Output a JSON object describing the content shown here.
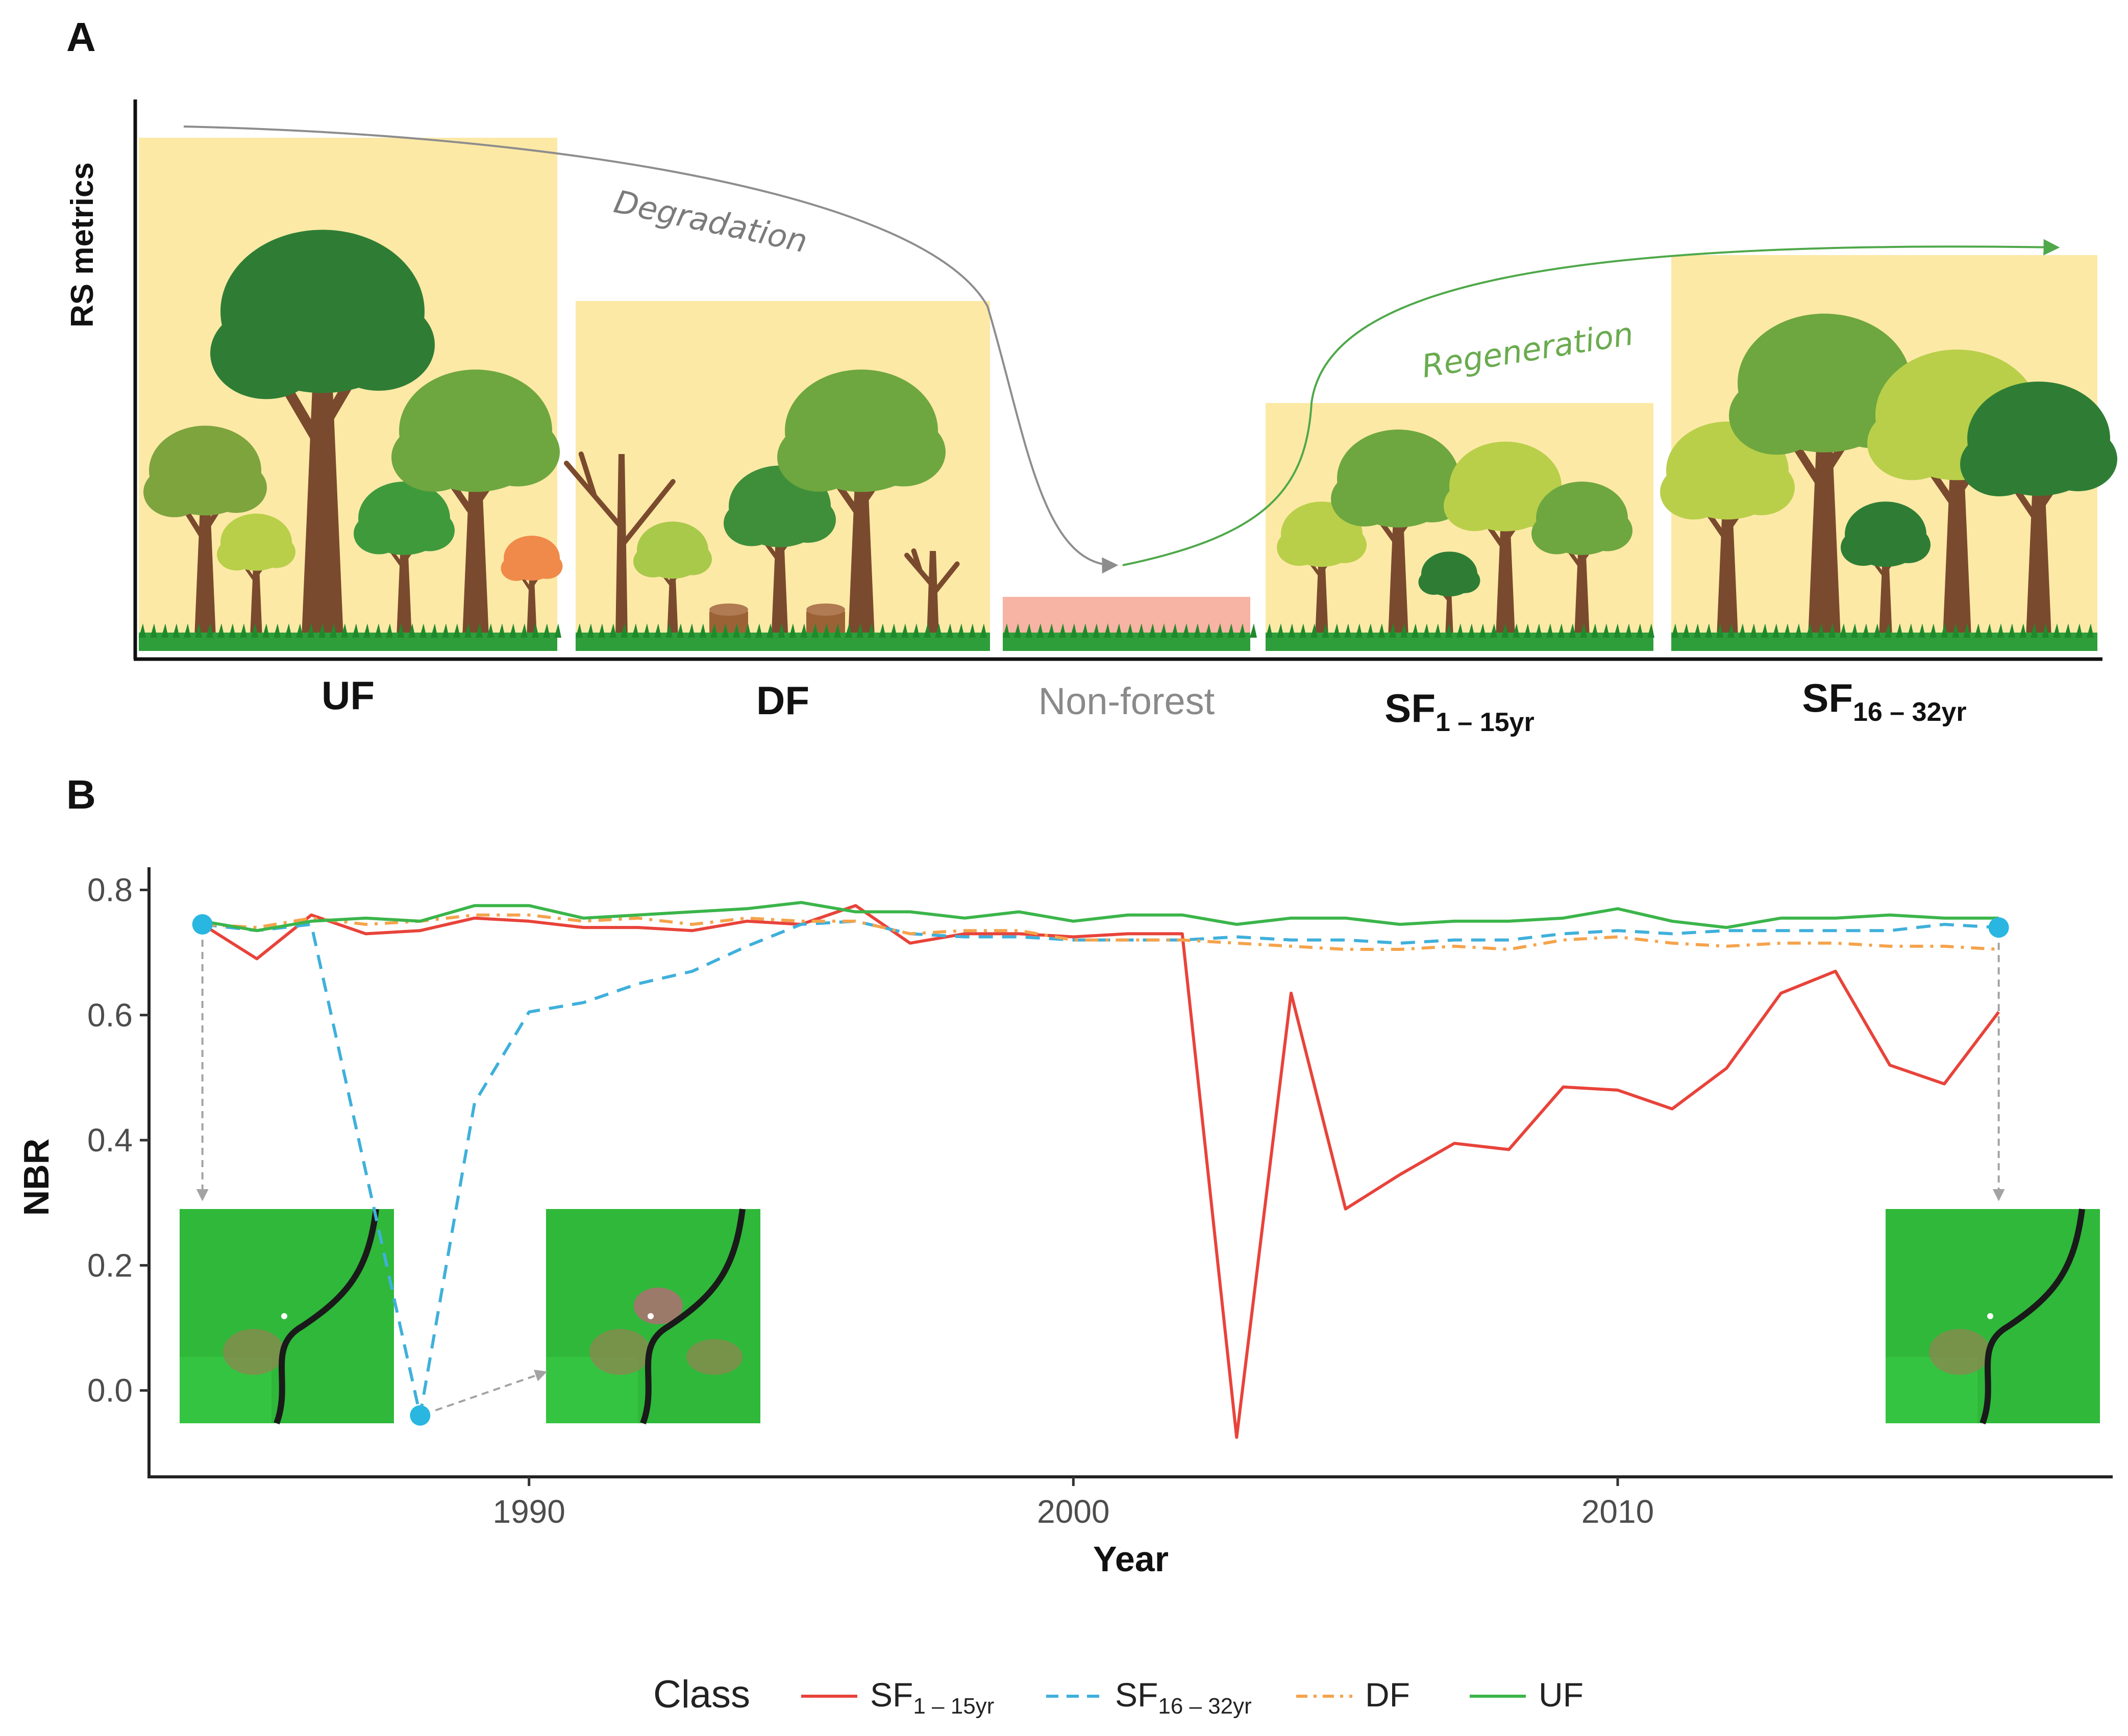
{
  "panel_a": {
    "letter": "A",
    "y_axis_label": "RS metrics",
    "arrow_degradation_label": "Degradation",
    "arrow_regeneration_label": "Regeneration",
    "stages": [
      {
        "label": "UF",
        "sub": "",
        "level": 1.0
      },
      {
        "label": "DF",
        "sub": "",
        "level": 0.68
      },
      {
        "label": "Non-forest",
        "sub": "",
        "level": 0.1
      },
      {
        "label": "SF",
        "sub": "1 – 15yr",
        "level": 0.48
      },
      {
        "label": "SF",
        "sub": "16 – 32yr",
        "level": 0.77
      }
    ],
    "colors": {
      "stage_box": "#fde9a6",
      "nonforest_box": "#f7b3a3",
      "grass": "#2e9e3a"
    }
  },
  "panel_b": {
    "letter": "B"
  },
  "chart_data": {
    "type": "line",
    "xlabel": "Year",
    "ylabel": "NBR",
    "xlim": [
      1983,
      2019
    ],
    "ylim": [
      -0.13,
      0.82
    ],
    "x_ticks": [
      1990,
      2000,
      2010
    ],
    "y_ticks": [
      0.0,
      0.2,
      0.4,
      0.6,
      0.8
    ],
    "x_tick_labels": [
      "1990",
      "2000",
      "2010"
    ],
    "y_tick_labels": [
      "0.0",
      "0.2",
      "0.4",
      "0.6",
      "0.8"
    ],
    "grid": false,
    "legend": {
      "title": "Class",
      "position": "bottom"
    },
    "series": [
      {
        "name": "SF",
        "name_sub": "1 – 15yr",
        "color": "#e8433a",
        "dash": "solid",
        "x": [
          1984,
          1985,
          1986,
          1987,
          1988,
          1989,
          1990,
          1991,
          1992,
          1993,
          1994,
          1995,
          1996,
          1997,
          1998,
          1999,
          2000,
          2001,
          2002,
          2003,
          2004,
          2005,
          2006,
          2007,
          2008,
          2009,
          2010,
          2011,
          2012,
          2013,
          2014,
          2015,
          2016,
          2017
        ],
        "y": [
          0.745,
          0.69,
          0.76,
          0.73,
          0.735,
          0.755,
          0.75,
          0.74,
          0.74,
          0.735,
          0.75,
          0.745,
          0.775,
          0.715,
          0.73,
          0.73,
          0.725,
          0.73,
          0.73,
          -0.075,
          0.635,
          0.29,
          0.345,
          0.395,
          0.385,
          0.485,
          0.48,
          0.45,
          0.515,
          0.635,
          0.67,
          0.52,
          0.49,
          0.605
        ]
      },
      {
        "name": "SF",
        "name_sub": "16 – 32yr",
        "color": "#3fb0db",
        "dash": "dashed",
        "x": [
          1984,
          1985,
          1986,
          1987,
          1988,
          1989,
          1990,
          1991,
          1992,
          1993,
          1994,
          1995,
          1996,
          1997,
          1998,
          1999,
          2000,
          2001,
          2002,
          2003,
          2004,
          2005,
          2006,
          2007,
          2008,
          2009,
          2010,
          2011,
          2012,
          2013,
          2014,
          2015,
          2016,
          2017
        ],
        "y": [
          0.745,
          0.735,
          0.745,
          0.35,
          -0.04,
          0.46,
          0.605,
          0.62,
          0.65,
          0.67,
          0.71,
          0.745,
          0.75,
          0.73,
          0.725,
          0.725,
          0.72,
          0.72,
          0.72,
          0.725,
          0.72,
          0.72,
          0.715,
          0.72,
          0.72,
          0.73,
          0.735,
          0.73,
          0.735,
          0.735,
          0.735,
          0.735,
          0.745,
          0.74
        ]
      },
      {
        "name": "DF",
        "name_sub": "",
        "color": "#f5a34b",
        "dash": "dotdash",
        "x": [
          1984,
          1985,
          1986,
          1987,
          1988,
          1989,
          1990,
          1991,
          1992,
          1993,
          1994,
          1995,
          1996,
          1997,
          1998,
          1999,
          2000,
          2001,
          2002,
          2003,
          2004,
          2005,
          2006,
          2007,
          2008,
          2009,
          2010,
          2011,
          2012,
          2013,
          2014,
          2015,
          2016,
          2017
        ],
        "y": [
          0.745,
          0.74,
          0.755,
          0.745,
          0.75,
          0.76,
          0.76,
          0.75,
          0.755,
          0.745,
          0.755,
          0.75,
          0.75,
          0.73,
          0.735,
          0.735,
          0.72,
          0.72,
          0.72,
          0.715,
          0.71,
          0.705,
          0.705,
          0.71,
          0.705,
          0.72,
          0.725,
          0.715,
          0.71,
          0.715,
          0.715,
          0.71,
          0.71,
          0.705
        ]
      },
      {
        "name": "UF",
        "name_sub": "",
        "color": "#3bb54a",
        "dash": "solid",
        "x": [
          1984,
          1985,
          1986,
          1987,
          1988,
          1989,
          1990,
          1991,
          1992,
          1993,
          1994,
          1995,
          1996,
          1997,
          1998,
          1999,
          2000,
          2001,
          2002,
          2003,
          2004,
          2005,
          2006,
          2007,
          2008,
          2009,
          2010,
          2011,
          2012,
          2013,
          2014,
          2015,
          2016,
          2017
        ],
        "y": [
          0.75,
          0.735,
          0.75,
          0.755,
          0.75,
          0.775,
          0.775,
          0.755,
          0.76,
          0.765,
          0.77,
          0.78,
          0.765,
          0.765,
          0.755,
          0.765,
          0.75,
          0.76,
          0.76,
          0.745,
          0.755,
          0.755,
          0.745,
          0.75,
          0.75,
          0.755,
          0.77,
          0.75,
          0.74,
          0.755,
          0.755,
          0.76,
          0.755,
          0.755
        ]
      }
    ],
    "highlight_points": [
      {
        "x": 1984,
        "y": 0.745
      },
      {
        "x": 1988,
        "y": -0.04
      },
      {
        "x": 2017,
        "y": 0.74
      }
    ],
    "highlight_color": "#29b6e0"
  }
}
